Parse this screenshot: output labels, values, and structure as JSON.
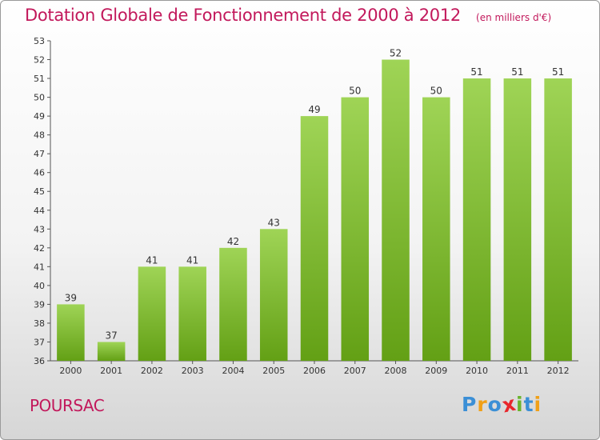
{
  "chart_data": {
    "type": "bar",
    "title": "Dotation Globale de Fonctionnement de 2000 à 2012",
    "unit": "(en milliers d'€)",
    "categories": [
      "2000",
      "2001",
      "2002",
      "2003",
      "2004",
      "2005",
      "2006",
      "2007",
      "2008",
      "2009",
      "2010",
      "2011",
      "2012"
    ],
    "values": [
      39,
      37,
      41,
      41,
      42,
      43,
      49,
      50,
      52,
      50,
      51,
      51,
      51
    ],
    "ylim": [
      36,
      53
    ],
    "yticks": [
      36,
      37,
      38,
      39,
      40,
      41,
      42,
      43,
      44,
      45,
      46,
      47,
      48,
      49,
      50,
      51,
      52,
      53
    ],
    "grid": false,
    "colors": {
      "bar_top": "#9fd456",
      "bar_bottom": "#63a015",
      "text": "#333333",
      "title": "#c2185b"
    }
  },
  "footer": {
    "commune": "POURSAC",
    "logo_letters": [
      {
        "ch": "P",
        "color": "#3b8fd6"
      },
      {
        "ch": "r",
        "color": "#f0a018"
      },
      {
        "ch": "o",
        "color": "#3b8fd6"
      },
      {
        "ch": "x",
        "color": "#e8262b"
      },
      {
        "ch": "i",
        "color": "#6ab42d"
      },
      {
        "ch": "t",
        "color": "#3b8fd6"
      },
      {
        "ch": "i",
        "color": "#f0a018"
      }
    ]
  }
}
